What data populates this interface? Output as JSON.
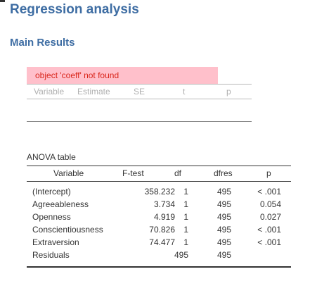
{
  "page": {
    "title": "Regression analysis",
    "section_title": "Main Results"
  },
  "coefficients": {
    "error_message": "object 'coeff' not found",
    "columns": [
      "Variable",
      "Estimate",
      "SE",
      "t",
      "p"
    ]
  },
  "anova": {
    "caption": "ANOVA table",
    "columns": [
      "Variable",
      "F-test",
      "df",
      "dfres",
      "p"
    ],
    "rows": [
      {
        "variable": "(Intercept)",
        "f": "358.232",
        "df": "1",
        "dfres": "495",
        "p": "< .001"
      },
      {
        "variable": "Agreeableness",
        "f": "3.734",
        "df": "1",
        "dfres": "495",
        "p": "0.054"
      },
      {
        "variable": "Openness",
        "f": "4.919",
        "df": "1",
        "dfres": "495",
        "p": "0.027"
      },
      {
        "variable": "Conscientiousness",
        "f": "70.826",
        "df": "1",
        "dfres": "495",
        "p": "< .001"
      },
      {
        "variable": "Extraversion",
        "f": "74.477",
        "df": "1",
        "dfres": "495",
        "p": "< .001"
      },
      {
        "variable": "Residuals",
        "f": "",
        "df": "495",
        "dfres": "495",
        "p": ""
      }
    ]
  },
  "colors": {
    "heading": "#3e6da3",
    "error_background": "#ffc0cb",
    "error_text": "#d9261c",
    "muted_header": "#b0b0b0"
  }
}
